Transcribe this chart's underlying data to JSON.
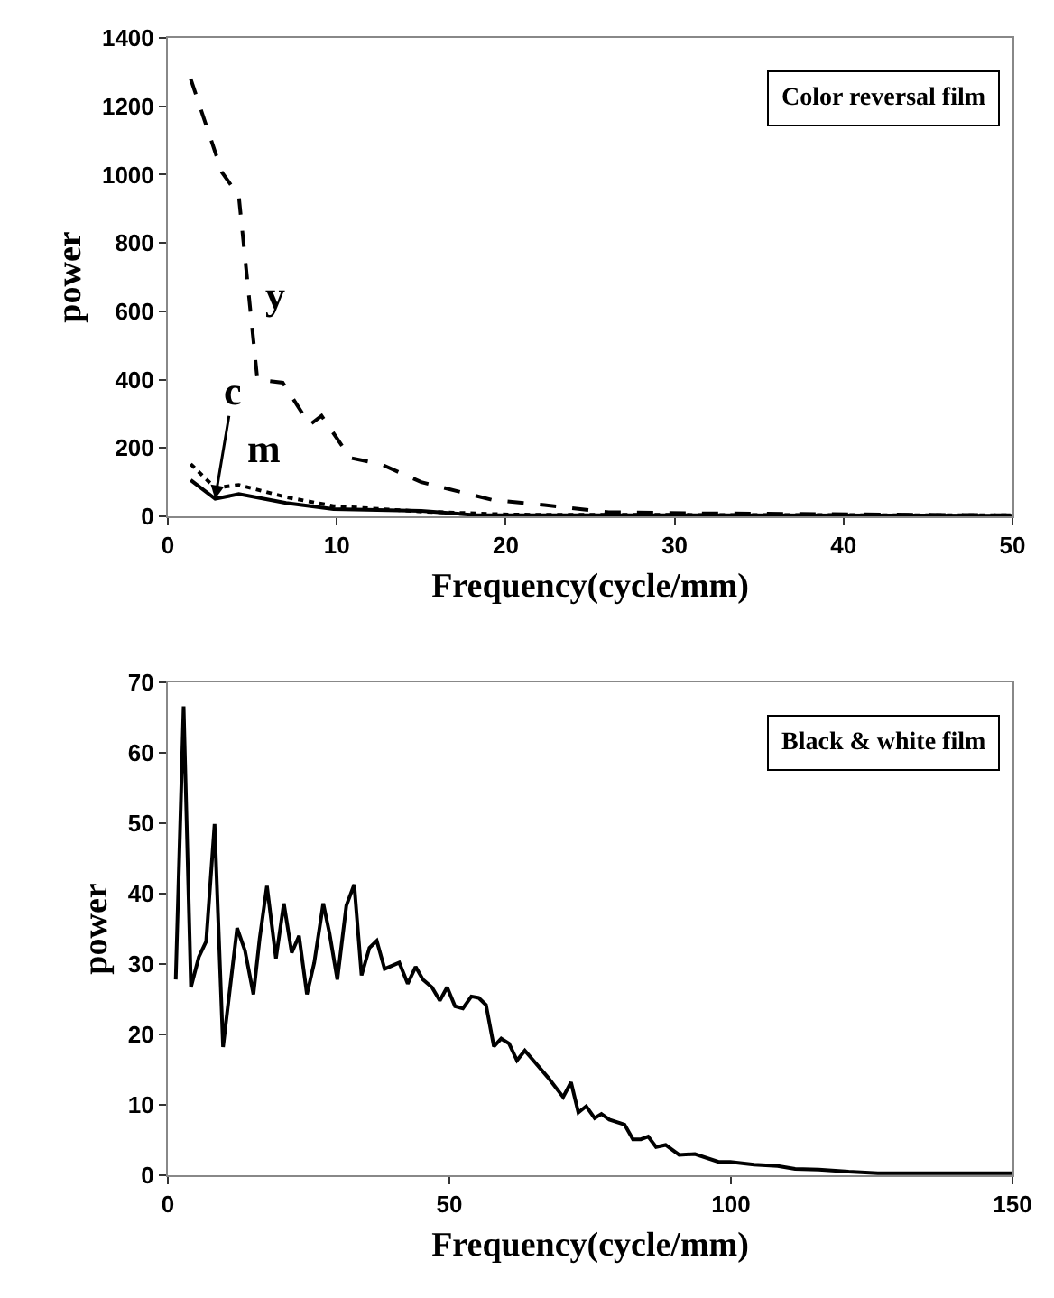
{
  "chart_data": [
    {
      "type": "line",
      "xlabel": "Frequency(cycle/mm)",
      "ylabel": "power",
      "xlim": [
        0,
        50
      ],
      "xticks": [
        0,
        10,
        20,
        30,
        40,
        50
      ],
      "ylim": [
        0,
        1400
      ],
      "yticks": [
        0,
        200,
        400,
        600,
        800,
        1000,
        1200,
        1400
      ],
      "marker": "none",
      "annotations": [
        "Color reversal film"
      ],
      "series": [
        {
          "name": "y",
          "color": "#000000",
          "line_style": "dashed",
          "x": [
            1.35,
            3.2,
            4.2,
            5.3,
            6.8,
            8.4,
            9.1,
            10.8,
            12.6,
            15,
            19.2,
            22.3,
            26.1,
            31.3,
            50
          ],
          "values": [
            1280,
            1007,
            937,
            400,
            391,
            268,
            294,
            171,
            153,
            100,
            48,
            33,
            12,
            9,
            3
          ]
        },
        {
          "name": "c",
          "color": "#000000",
          "line_style": "solid",
          "x": [
            1.35,
            2.8,
            4.2,
            7,
            9.8,
            15,
            18.1,
            50
          ],
          "values": [
            106,
            51,
            65,
            39,
            21,
            16,
            4,
            2
          ]
        },
        {
          "name": "m",
          "color": "#000000",
          "line_style": "dotted",
          "x": [
            1.35,
            2.8,
            4.2,
            7,
            9.8,
            15,
            20.3,
            50
          ],
          "values": [
            153,
            83,
            92,
            56,
            30,
            14,
            5,
            3
          ]
        }
      ]
    },
    {
      "type": "line",
      "xlabel": "Frequency(cycle/mm)",
      "ylabel": "power",
      "xlim": [
        0,
        150
      ],
      "xticks": [
        0,
        50,
        100,
        150
      ],
      "ylim": [
        0,
        70
      ],
      "yticks": [
        0,
        10,
        20,
        30,
        40,
        50,
        60,
        70
      ],
      "marker": "none",
      "annotations": [
        "Black & white film"
      ],
      "series": [
        {
          "color": "#000000",
          "line_style": "solid",
          "x": [
            1.4,
            2.8,
            4.1,
            5.5,
            6.8,
            8.3,
            9.8,
            12.3,
            13.7,
            15.2,
            16.3,
            17.6,
            19.2,
            20.6,
            22.0,
            23.3,
            24.7,
            26.0,
            27.6,
            28.7,
            30.1,
            31.7,
            33.1,
            34.4,
            35.8,
            37.1,
            38.5,
            41.1,
            42.6,
            44.0,
            45.3,
            46.9,
            48.3,
            49.6,
            51.0,
            52.4,
            53.9,
            55.2,
            56.5,
            57.9,
            59.2,
            60.6,
            62.0,
            63.4,
            64.7,
            67.5,
            70.2,
            71.6,
            72.9,
            74.3,
            75.8,
            77.0,
            78.4,
            81.1,
            82.6,
            84.0,
            85.3,
            86.7,
            88.4,
            90.8,
            93.6,
            97.8,
            99.9,
            104.1,
            108.3,
            111.4,
            115.6,
            120.9,
            126.1,
            136.6,
            150
          ],
          "values": [
            27.8,
            66.6,
            26.7,
            31,
            33.2,
            49.9,
            18.2,
            35.1,
            31.9,
            25.7,
            33.6,
            41.1,
            30.8,
            38.6,
            31.6,
            34,
            25.7,
            30.2,
            38.6,
            34.4,
            27.8,
            38.3,
            41.3,
            28.4,
            32.3,
            33.3,
            29.3,
            30.2,
            27.2,
            29.6,
            27.8,
            26.7,
            24.8,
            26.7,
            24.0,
            23.7,
            25.4,
            25.2,
            24.2,
            18.3,
            19.4,
            18.7,
            16.3,
            17.7,
            16.5,
            13.9,
            11.1,
            13.2,
            8.9,
            9.8,
            8.1,
            8.7,
            7.9,
            7.2,
            5.1,
            5.1,
            5.5,
            4.0,
            4.3,
            2.9,
            3.0,
            1.9,
            1.9,
            1.5,
            1.3,
            0.9,
            0.8,
            0.5,
            0.3,
            0.3,
            0.3
          ]
        }
      ]
    }
  ]
}
